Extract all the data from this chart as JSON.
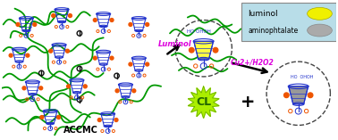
{
  "bg_color": "#ffffff",
  "legend_box_color": "#b8dde8",
  "legend_text1": "luminol",
  "legend_text2": "aminophtalate",
  "legend_ellipse1_color": "#f0f000",
  "legend_ellipse2_color": "#aaaaaa",
  "luminol_arrow_label": "Luminol",
  "luminol_arrow_color": "#dd00dd",
  "cu_arrow_label": "Cu2+/H2O2",
  "cu_arrow_color": "#dd00dd",
  "cl_label": "CL",
  "cl_star_color": "#aaee00",
  "plus_label": "+",
  "accmc_label": "ACCMC",
  "network_green": "#009900",
  "network_blue": "#2233cc",
  "network_orange": "#ee5500",
  "network_black": "#111111",
  "dashed_circle_color": "#444444",
  "calixarene_yellow": "#ffff44",
  "calixarene_grey": "#999999",
  "calixarene_white": "#ffffff"
}
